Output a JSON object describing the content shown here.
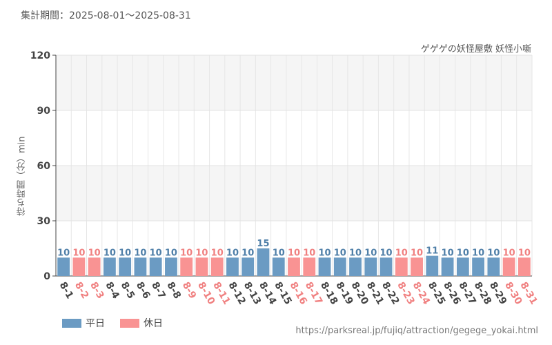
{
  "header": {
    "period": "集計期間：2025-08-01～2025-08-31"
  },
  "footer": {
    "source": "https://parksreal.jp/fujiq/attraction/gegege_yokai.html"
  },
  "chart_data": {
    "type": "bar",
    "title": "",
    "subtitle": "ゲゲゲの妖怪屋敷 妖怪小噺",
    "ylabel": "待ち時間（分）min",
    "ylim": [
      0,
      120
    ],
    "yticks": [
      "0",
      "30",
      "60",
      "90",
      "120"
    ],
    "grid": true,
    "legend_placement": "bottom-left",
    "categories": [
      "8-1",
      "8-2",
      "8-3",
      "8-4",
      "8-5",
      "8-6",
      "8-7",
      "8-8",
      "8-9",
      "8-10",
      "8-11",
      "8-12",
      "8-13",
      "8-14",
      "8-15",
      "8-16",
      "8-17",
      "8-18",
      "8-19",
      "8-20",
      "8-21",
      "8-22",
      "8-23",
      "8-24",
      "8-25",
      "8-26",
      "8-27",
      "8-28",
      "8-29",
      "8-30",
      "8-31"
    ],
    "values": [
      10,
      10,
      10,
      10,
      10,
      10,
      10,
      10,
      10,
      10,
      10,
      10,
      10,
      15,
      10,
      10,
      10,
      10,
      10,
      10,
      10,
      10,
      10,
      10,
      11,
      10,
      10,
      10,
      10,
      10,
      10
    ],
    "day_type": [
      "weekday",
      "holiday",
      "holiday",
      "weekday",
      "weekday",
      "weekday",
      "weekday",
      "weekday",
      "holiday",
      "holiday",
      "holiday",
      "weekday",
      "weekday",
      "weekday",
      "weekday",
      "holiday",
      "holiday",
      "weekday",
      "weekday",
      "weekday",
      "weekday",
      "weekday",
      "holiday",
      "holiday",
      "weekday",
      "weekday",
      "weekday",
      "weekday",
      "weekday",
      "holiday",
      "holiday"
    ],
    "legend": [
      {
        "key": "weekday",
        "label": "平日",
        "color": "#6b9bc3"
      },
      {
        "key": "holiday",
        "label": "休日",
        "color": "#f99393"
      }
    ],
    "colors": {
      "weekday_bar": "#6b9bc3",
      "holiday_bar": "#f99393",
      "weekday_text": "#4f7fa8",
      "holiday_text": "#f08080",
      "weekday_tick": "#444444",
      "holiday_tick": "#f08080"
    }
  }
}
